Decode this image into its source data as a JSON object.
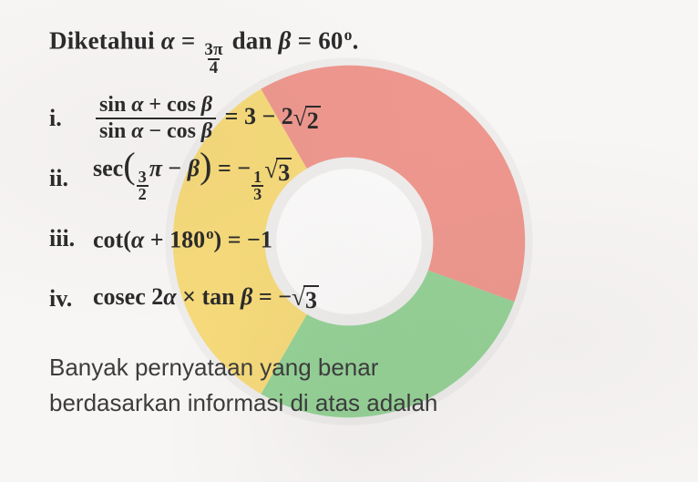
{
  "logo": {
    "outer_ring_color": "#e6e6e6",
    "segments": [
      {
        "color": "#43b649",
        "start": 110,
        "end": 210
      },
      {
        "color": "#f6c416",
        "start": 210,
        "end": 330
      },
      {
        "color": "#e74a3a",
        "start": 330,
        "end": 470
      }
    ],
    "inner_color": "#ffffff",
    "opacity": 0.55
  },
  "background_color": "#f8f6f5",
  "text_color": "#2b2b2b",
  "intro": {
    "prefix": "Diketahui ",
    "alpha_var": "α",
    "equals1": " = ",
    "frac_num": "3π",
    "frac_den": "4",
    "mid": " dan ",
    "beta_var": "β",
    "equals2": " = ",
    "beta_val": "60",
    "deg": "o",
    "period": "."
  },
  "items": {
    "i": {
      "marker": "i.",
      "num_l": "sin ",
      "num_var1": "α",
      "num_mid": " + cos ",
      "num_var2": "β",
      "den_l": "sin ",
      "den_var1": "α",
      "den_mid": " − cos ",
      "den_var2": "β",
      "rhs_a": " = 3 − 2",
      "sqrt_arg": "2"
    },
    "ii": {
      "marker": "ii.",
      "fn": "sec",
      "frac_num": "3",
      "frac_den": "2",
      "pi": "π",
      "minus": " − ",
      "beta": "β",
      "eq": " = −",
      "rfrac_num": "1",
      "rfrac_den": "3",
      "sqrt_arg": "3"
    },
    "iii": {
      "marker": "iii.",
      "fn": "cot(",
      "alpha": "α",
      "plus": " + ",
      "deg_val": "180",
      "deg": "o",
      "close": ") = −1"
    },
    "iv": {
      "marker": "iv.",
      "lhs_a": "cosec 2",
      "alpha": "α",
      "times": " × tan ",
      "beta": "β",
      "eq": " = −",
      "sqrt_arg": "3"
    }
  },
  "question": {
    "line1": "Banyak pernyataan yang benar",
    "line2": "berdasarkan informasi di atas adalah"
  }
}
